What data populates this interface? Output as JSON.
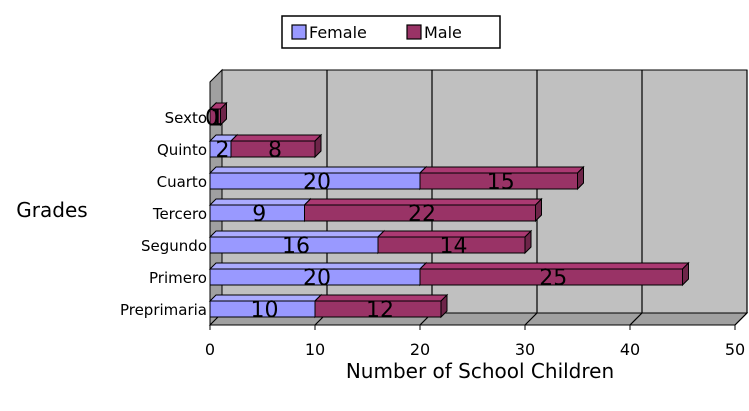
{
  "chart_data": {
    "type": "bar",
    "orientation": "horizontal",
    "stacked": true,
    "style": "3d",
    "categories": [
      "Sexto",
      "Quinto",
      "Cuarto",
      "Tercero",
      "Segundo",
      "Primero",
      "Preprimaria"
    ],
    "series": [
      {
        "name": "Female",
        "values": [
          0,
          2,
          20,
          9,
          16,
          20,
          10
        ],
        "color": "#9999FF"
      },
      {
        "name": "Male",
        "values": [
          1,
          8,
          15,
          22,
          14,
          25,
          12
        ],
        "color": "#993366"
      }
    ],
    "xlabel": "Number of School Children",
    "ylabel": "Grades",
    "xlim": [
      0,
      50
    ],
    "xticks": [
      0,
      10,
      20,
      30,
      40,
      50
    ],
    "grid": true,
    "legend_position": "top",
    "plot_background": "#C0C0C0"
  }
}
